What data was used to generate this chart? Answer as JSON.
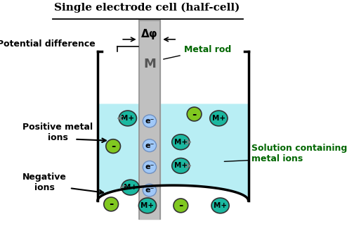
{
  "title": "Single electrode cell (half-cell)",
  "bg": "#ffffff",
  "solution_color": "#b8eef4",
  "rod_color": "#c0c0c0",
  "rod_outline": "#909090",
  "beaker_lw": 2.5,
  "ion_teal": "#1ab8a0",
  "ion_green": "#80c820",
  "electron_color": "#a0c8f8",
  "label_positive": "Positive metal\nions",
  "label_negative": "Negative\nions",
  "label_solution": "Solution containing\nmetal ions",
  "label_potential": "Potential difference",
  "label_deltaphi": "Δφ",
  "label_metalrod": "Metal rod",
  "label_M": "M",
  "label_Mplus": "M+",
  "label_eminus": "e⁻"
}
